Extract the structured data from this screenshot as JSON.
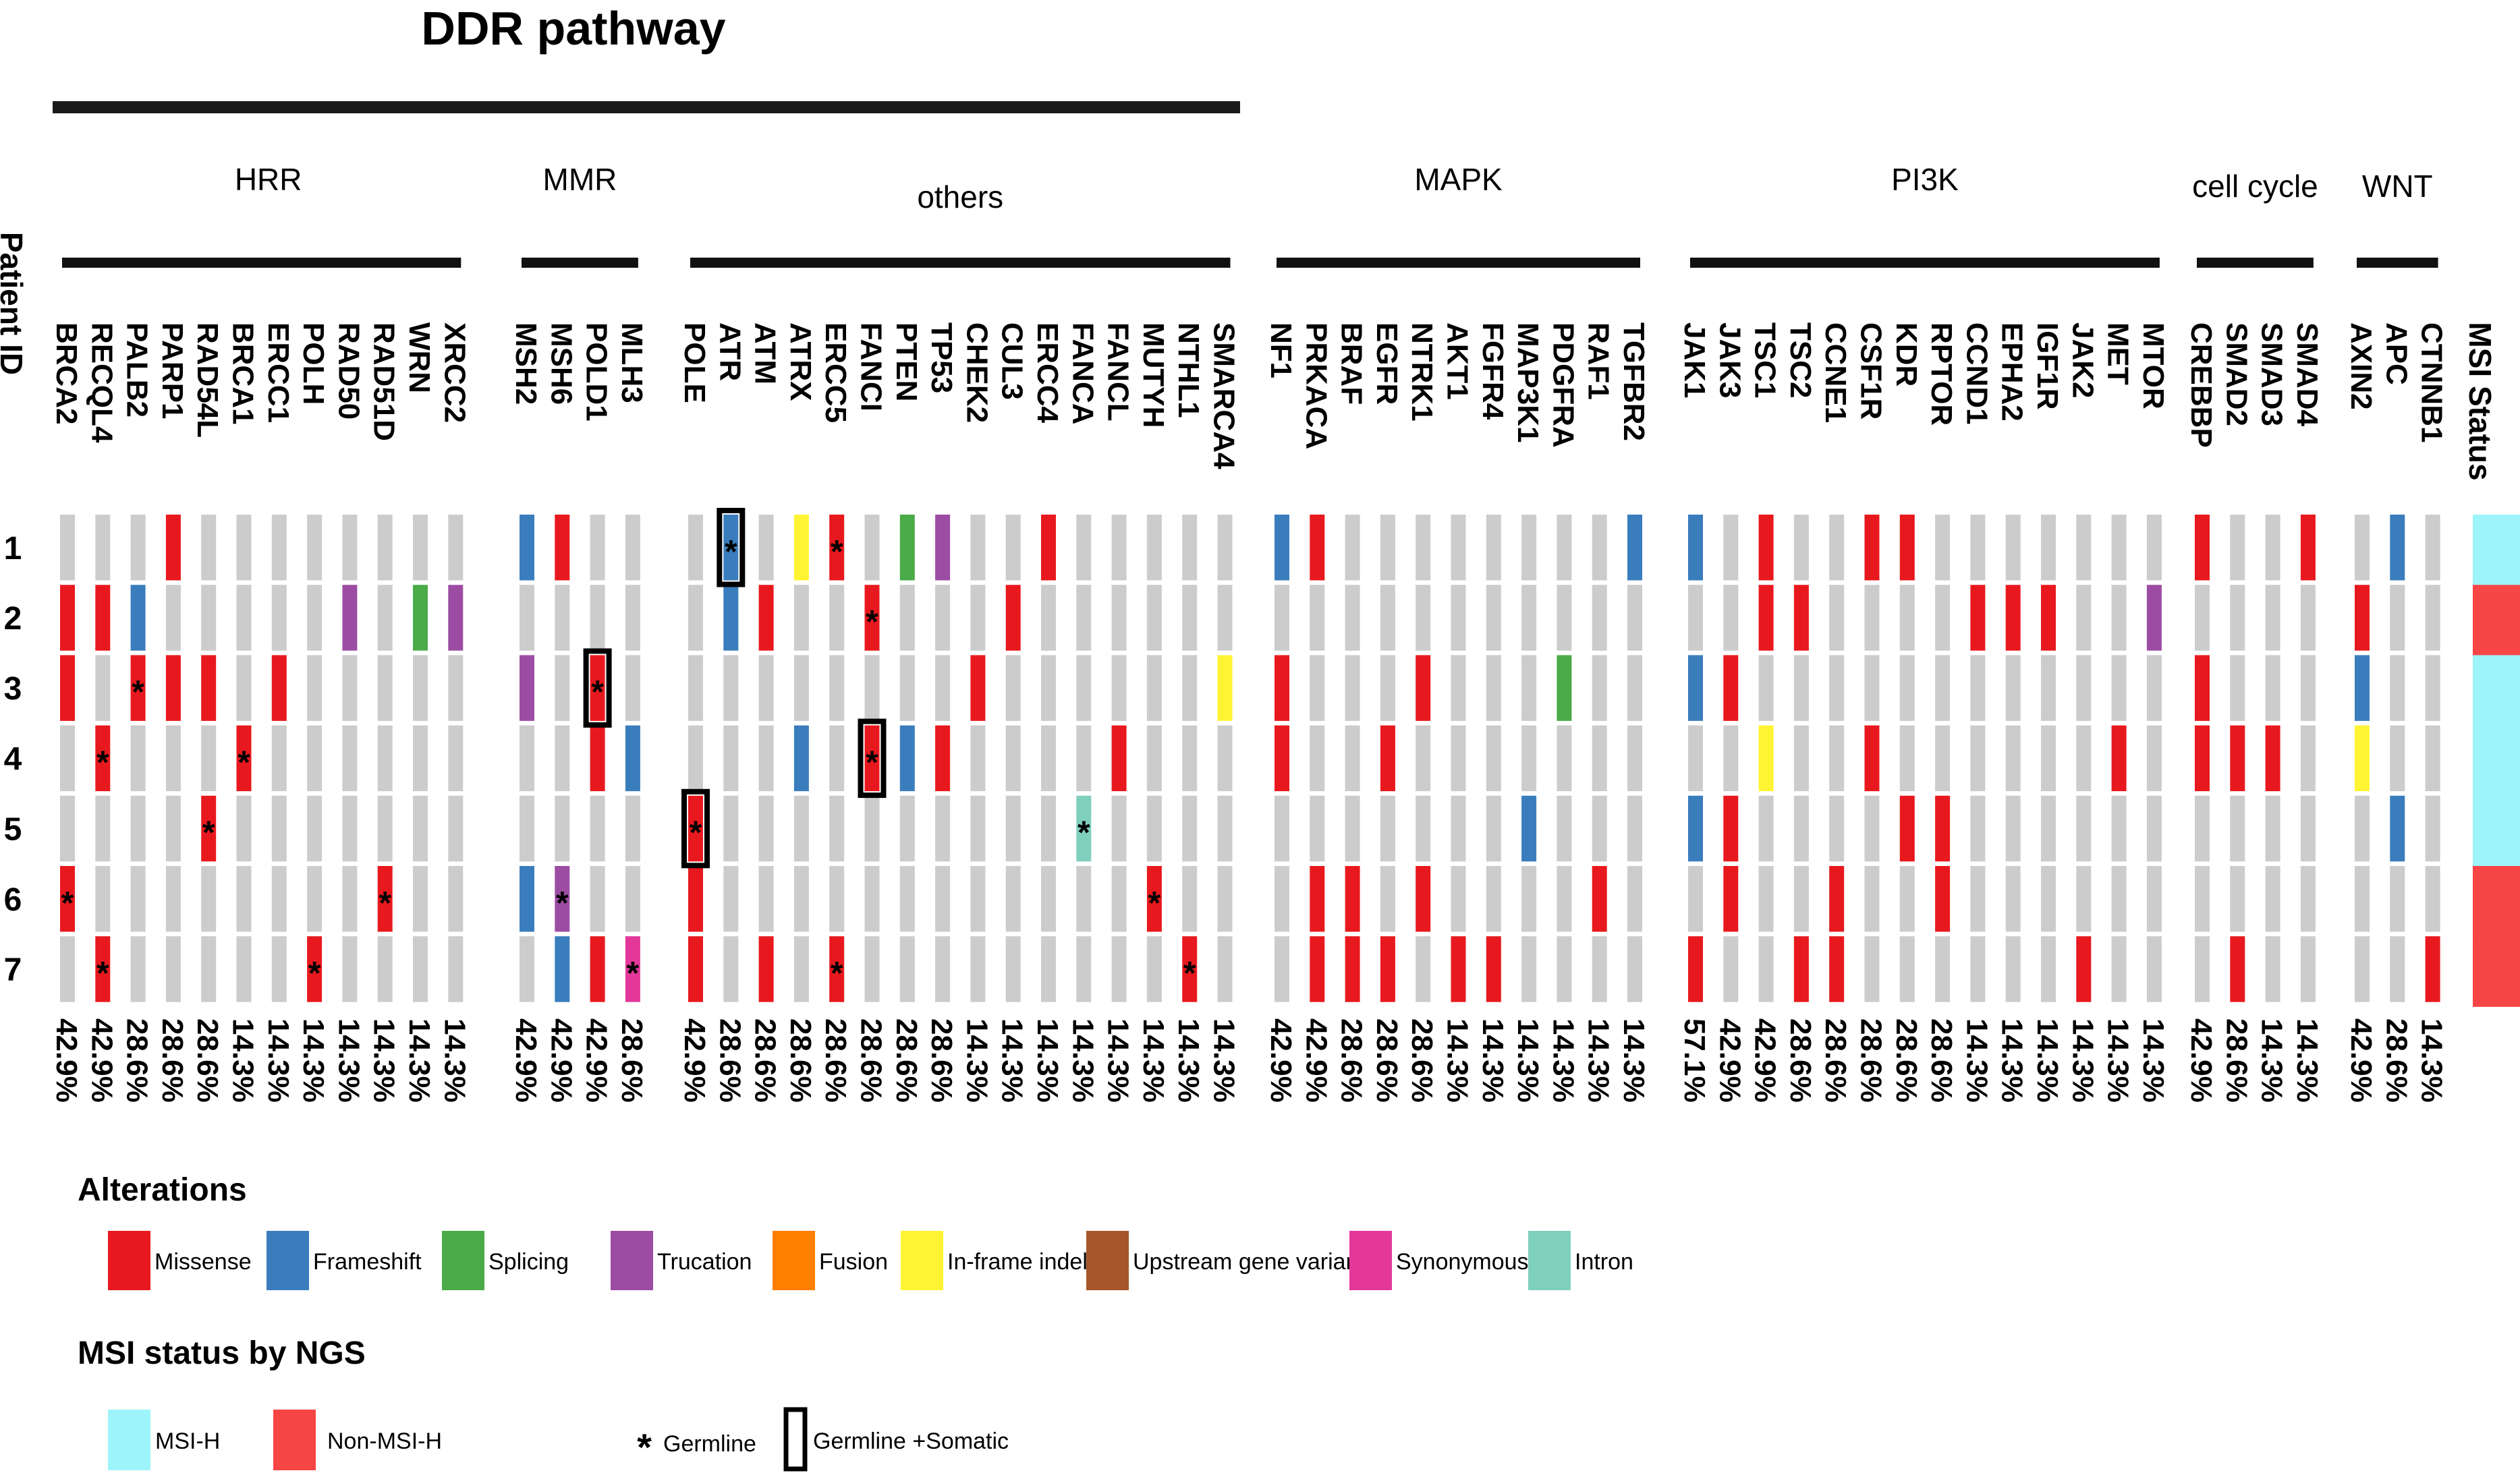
{
  "chart_data": {
    "type": "heatmap",
    "title": "DDR pathway",
    "row_header": "Patient ID",
    "status_header": "MSI Status",
    "patients": [
      "1",
      "2",
      "3",
      "4",
      "5",
      "6",
      "7"
    ],
    "ddr_groups": [
      "HRR",
      "MMR",
      "others"
    ],
    "groups": [
      {
        "name": "HRR",
        "genes": [
          "BRCA2",
          "RECQL4",
          "PALB2",
          "PARP1",
          "RAD54L",
          "BRCA1",
          "ERCC1",
          "POLH",
          "RAD50",
          "RAD51D",
          "WRN",
          "XRCC2"
        ]
      },
      {
        "name": "MMR",
        "genes": [
          "MSH2",
          "MSH6",
          "POLD1",
          "MLH3"
        ]
      },
      {
        "name": "others",
        "genes": [
          "POLE",
          "ATR",
          "ATM",
          "ATRX",
          "ERCC5",
          "FANCI",
          "PTEN",
          "TP53",
          "CHEK2",
          "CUL3",
          "ERCC4",
          "FANCA",
          "FANCL",
          "MUTYH",
          "NTHL1",
          "SMARCA4"
        ]
      },
      {
        "name": "MAPK",
        "genes": [
          "NF1",
          "PRKACA",
          "BRAF",
          "EGFR",
          "NTRK1",
          "AKT1",
          "FGFR4",
          "MAP3K1",
          "PDGFRA",
          "RAF1",
          "TGFBR2"
        ]
      },
      {
        "name": "PI3K",
        "genes": [
          "JAK1",
          "JAK3",
          "TSC1",
          "TSC2",
          "CCNE1",
          "CSF1R",
          "KDR",
          "RPTOR",
          "CCND1",
          "EPHA2",
          "IGF1R",
          "JAK2",
          "MET",
          "MTOR"
        ]
      },
      {
        "name": "cell cycle",
        "genes": [
          "CREBBP",
          "SMAD2",
          "SMAD3",
          "SMAD4"
        ]
      },
      {
        "name": "WNT",
        "genes": [
          "AXIN2",
          "APC",
          "CTNNB1"
        ]
      }
    ],
    "frequencies": [
      [
        "42.9%",
        "42.9%",
        "28.6%",
        "28.6%",
        "28.6%",
        "14.3%",
        "14.3%",
        "14.3%",
        "14.3%",
        "14.3%",
        "14.3%",
        "14.3%"
      ],
      [
        "42.9%",
        "42.9%",
        "42.9%",
        "28.6%"
      ],
      [
        "42.9%",
        "28.6%",
        "28.6%",
        "28.6%",
        "28.6%",
        "28.6%",
        "28.6%",
        "28.6%",
        "14.3%",
        "14.3%",
        "14.3%",
        "14.3%",
        "14.3%",
        "14.3%",
        "14.3%",
        "14.3%"
      ],
      [
        "42.9%",
        "42.9%",
        "28.6%",
        "28.6%",
        "28.6%",
        "14.3%",
        "14.3%",
        "14.3%",
        "14.3%",
        "14.3%",
        "14.3%"
      ],
      [
        "57.1%",
        "42.9%",
        "42.9%",
        "28.6%",
        "28.6%",
        "28.6%",
        "28.6%",
        "28.6%",
        "14.3%",
        "14.3%",
        "14.3%",
        "14.3%",
        "14.3%",
        "14.3%"
      ],
      [
        "42.9%",
        "28.6%",
        "14.3%",
        "14.3%"
      ],
      [
        "42.9%",
        "28.6%",
        "14.3%"
      ]
    ],
    "alterations": [
      {
        "gene": "PARP1",
        "patient": 1,
        "type": "M"
      },
      {
        "gene": "MSH2",
        "patient": 1,
        "type": "F"
      },
      {
        "gene": "MSH6",
        "patient": 1,
        "type": "M"
      },
      {
        "gene": "ATR",
        "patient": 1,
        "type": "F",
        "mark": "both"
      },
      {
        "gene": "ATRX",
        "patient": 1,
        "type": "I"
      },
      {
        "gene": "ERCC5",
        "patient": 1,
        "type": "M",
        "mark": "germline"
      },
      {
        "gene": "PTEN",
        "patient": 1,
        "type": "S"
      },
      {
        "gene": "TP53",
        "patient": 1,
        "type": "T"
      },
      {
        "gene": "ERCC4",
        "patient": 1,
        "type": "M"
      },
      {
        "gene": "NF1",
        "patient": 1,
        "type": "F"
      },
      {
        "gene": "PRKACA",
        "patient": 1,
        "type": "M"
      },
      {
        "gene": "TGFBR2",
        "patient": 1,
        "type": "F"
      },
      {
        "gene": "JAK1",
        "patient": 1,
        "type": "F"
      },
      {
        "gene": "TSC1",
        "patient": 1,
        "type": "M"
      },
      {
        "gene": "CSF1R",
        "patient": 1,
        "type": "M"
      },
      {
        "gene": "KDR",
        "patient": 1,
        "type": "M"
      },
      {
        "gene": "CREBBP",
        "patient": 1,
        "type": "M"
      },
      {
        "gene": "SMAD4",
        "patient": 1,
        "type": "M"
      },
      {
        "gene": "APC",
        "patient": 1,
        "type": "F"
      },
      {
        "gene": "BRCA2",
        "patient": 2,
        "type": "M"
      },
      {
        "gene": "RECQL4",
        "patient": 2,
        "type": "M"
      },
      {
        "gene": "PALB2",
        "patient": 2,
        "type": "F"
      },
      {
        "gene": "RAD50",
        "patient": 2,
        "type": "T"
      },
      {
        "gene": "WRN",
        "patient": 2,
        "type": "S"
      },
      {
        "gene": "XRCC2",
        "patient": 2,
        "type": "T"
      },
      {
        "gene": "ATR",
        "patient": 2,
        "type": "F"
      },
      {
        "gene": "ATM",
        "patient": 2,
        "type": "M"
      },
      {
        "gene": "FANCI",
        "patient": 2,
        "type": "M",
        "mark": "germline"
      },
      {
        "gene": "CUL3",
        "patient": 2,
        "type": "M"
      },
      {
        "gene": "TSC1",
        "patient": 2,
        "type": "M"
      },
      {
        "gene": "TSC2",
        "patient": 2,
        "type": "M"
      },
      {
        "gene": "CCND1",
        "patient": 2,
        "type": "M"
      },
      {
        "gene": "EPHA2",
        "patient": 2,
        "type": "M"
      },
      {
        "gene": "IGF1R",
        "patient": 2,
        "type": "M"
      },
      {
        "gene": "MTOR",
        "patient": 2,
        "type": "T"
      },
      {
        "gene": "AXIN2",
        "patient": 2,
        "type": "M"
      },
      {
        "gene": "BRCA2",
        "patient": 3,
        "type": "M"
      },
      {
        "gene": "PALB2",
        "patient": 3,
        "type": "M",
        "mark": "germline"
      },
      {
        "gene": "PARP1",
        "patient": 3,
        "type": "M"
      },
      {
        "gene": "RAD54L",
        "patient": 3,
        "type": "M"
      },
      {
        "gene": "ERCC1",
        "patient": 3,
        "type": "M"
      },
      {
        "gene": "MSH2",
        "patient": 3,
        "type": "T"
      },
      {
        "gene": "POLD1",
        "patient": 3,
        "type": "M",
        "mark": "both"
      },
      {
        "gene": "CHEK2",
        "patient": 3,
        "type": "M"
      },
      {
        "gene": "SMARCA4",
        "patient": 3,
        "type": "I"
      },
      {
        "gene": "NF1",
        "patient": 3,
        "type": "M"
      },
      {
        "gene": "NTRK1",
        "patient": 3,
        "type": "M"
      },
      {
        "gene": "PDGFRA",
        "patient": 3,
        "type": "S"
      },
      {
        "gene": "JAK1",
        "patient": 3,
        "type": "F"
      },
      {
        "gene": "JAK3",
        "patient": 3,
        "type": "M"
      },
      {
        "gene": "CREBBP",
        "patient": 3,
        "type": "M"
      },
      {
        "gene": "AXIN2",
        "patient": 3,
        "type": "F"
      },
      {
        "gene": "RECQL4",
        "patient": 4,
        "type": "M",
        "mark": "germline"
      },
      {
        "gene": "BRCA1",
        "patient": 4,
        "type": "M",
        "mark": "germline"
      },
      {
        "gene": "POLD1",
        "patient": 4,
        "type": "M"
      },
      {
        "gene": "MLH3",
        "patient": 4,
        "type": "F"
      },
      {
        "gene": "ATRX",
        "patient": 4,
        "type": "F"
      },
      {
        "gene": "FANCI",
        "patient": 4,
        "type": "M",
        "mark": "both"
      },
      {
        "gene": "PTEN",
        "patient": 4,
        "type": "F"
      },
      {
        "gene": "TP53",
        "patient": 4,
        "type": "M"
      },
      {
        "gene": "FANCL",
        "patient": 4,
        "type": "M"
      },
      {
        "gene": "NF1",
        "patient": 4,
        "type": "M"
      },
      {
        "gene": "EGFR",
        "patient": 4,
        "type": "M"
      },
      {
        "gene": "TSC1",
        "patient": 4,
        "type": "I"
      },
      {
        "gene": "CSF1R",
        "patient": 4,
        "type": "M"
      },
      {
        "gene": "MET",
        "patient": 4,
        "type": "M"
      },
      {
        "gene": "CREBBP",
        "patient": 4,
        "type": "M"
      },
      {
        "gene": "SMAD2",
        "patient": 4,
        "type": "M"
      },
      {
        "gene": "SMAD3",
        "patient": 4,
        "type": "M"
      },
      {
        "gene": "AXIN2",
        "patient": 4,
        "type": "I"
      },
      {
        "gene": "RAD54L",
        "patient": 5,
        "type": "M",
        "mark": "germline"
      },
      {
        "gene": "POLE",
        "patient": 5,
        "type": "M",
        "mark": "both"
      },
      {
        "gene": "FANCA",
        "patient": 5,
        "type": "N",
        "mark": "germline"
      },
      {
        "gene": "MAP3K1",
        "patient": 5,
        "type": "F"
      },
      {
        "gene": "JAK1",
        "patient": 5,
        "type": "F"
      },
      {
        "gene": "JAK3",
        "patient": 5,
        "type": "M"
      },
      {
        "gene": "KDR",
        "patient": 5,
        "type": "M"
      },
      {
        "gene": "RPTOR",
        "patient": 5,
        "type": "M"
      },
      {
        "gene": "APC",
        "patient": 5,
        "type": "F"
      },
      {
        "gene": "BRCA2",
        "patient": 6,
        "type": "M",
        "mark": "germline"
      },
      {
        "gene": "RAD51D",
        "patient": 6,
        "type": "M",
        "mark": "germline"
      },
      {
        "gene": "MSH2",
        "patient": 6,
        "type": "F"
      },
      {
        "gene": "MSH6",
        "patient": 6,
        "type": "T",
        "mark": "germline"
      },
      {
        "gene": "POLE",
        "patient": 6,
        "type": "M"
      },
      {
        "gene": "MUTYH",
        "patient": 6,
        "type": "M",
        "mark": "germline"
      },
      {
        "gene": "PRKACA",
        "patient": 6,
        "type": "M"
      },
      {
        "gene": "BRAF",
        "patient": 6,
        "type": "M"
      },
      {
        "gene": "NTRK1",
        "patient": 6,
        "type": "M"
      },
      {
        "gene": "RAF1",
        "patient": 6,
        "type": "M"
      },
      {
        "gene": "JAK3",
        "patient": 6,
        "type": "M"
      },
      {
        "gene": "CCNE1",
        "patient": 6,
        "type": "M"
      },
      {
        "gene": "RPTOR",
        "patient": 6,
        "type": "M"
      },
      {
        "gene": "RECQL4",
        "patient": 7,
        "type": "M",
        "mark": "germline"
      },
      {
        "gene": "POLH",
        "patient": 7,
        "type": "M",
        "mark": "germline"
      },
      {
        "gene": "MSH6",
        "patient": 7,
        "type": "F"
      },
      {
        "gene": "POLD1",
        "patient": 7,
        "type": "M"
      },
      {
        "gene": "MLH3",
        "patient": 7,
        "type": "Y",
        "mark": "germline"
      },
      {
        "gene": "POLE",
        "patient": 7,
        "type": "M"
      },
      {
        "gene": "ATM",
        "patient": 7,
        "type": "M"
      },
      {
        "gene": "ERCC5",
        "patient": 7,
        "type": "M",
        "mark": "germline"
      },
      {
        "gene": "NTHL1",
        "patient": 7,
        "type": "M",
        "mark": "germline"
      },
      {
        "gene": "PRKACA",
        "patient": 7,
        "type": "M"
      },
      {
        "gene": "BRAF",
        "patient": 7,
        "type": "M"
      },
      {
        "gene": "EGFR",
        "patient": 7,
        "type": "M"
      },
      {
        "gene": "AKT1",
        "patient": 7,
        "type": "M"
      },
      {
        "gene": "FGFR4",
        "patient": 7,
        "type": "M"
      },
      {
        "gene": "JAK1",
        "patient": 7,
        "type": "M"
      },
      {
        "gene": "TSC2",
        "patient": 7,
        "type": "M"
      },
      {
        "gene": "CCNE1",
        "patient": 7,
        "type": "M"
      },
      {
        "gene": "JAK2",
        "patient": 7,
        "type": "M"
      },
      {
        "gene": "SMAD2",
        "patient": 7,
        "type": "M"
      },
      {
        "gene": "CTNNB1",
        "patient": 7,
        "type": "M"
      }
    ],
    "msi_status": [
      "MSI-H",
      "Non-MSI-H",
      "MSI-H",
      "MSI-H",
      "MSI-H",
      "Non-MSI-H",
      "Non-MSI-H"
    ],
    "alteration_types": [
      {
        "code": "M",
        "label": "Missense",
        "color": "#e8191e"
      },
      {
        "code": "F",
        "label": "Frameshift",
        "color": "#3a7dbd"
      },
      {
        "code": "S",
        "label": "Splicing",
        "color": "#4aab48"
      },
      {
        "code": "T",
        "label": "Trucation",
        "color": "#9c4da3"
      },
      {
        "code": "U",
        "label": "Fusion",
        "color": "#ff7f00"
      },
      {
        "code": "I",
        "label": "In-frame indel",
        "color": "#fff433"
      },
      {
        "code": "G",
        "label": "Upstream gene variant",
        "color": "#a6562b"
      },
      {
        "code": "Y",
        "label": "Synonymous",
        "color": "#e3389a"
      },
      {
        "code": "N",
        "label": "Intron",
        "color": "#7fcfbd"
      }
    ],
    "legend": {
      "alterations_title": "Alterations",
      "msi_title": "MSI status by NGS",
      "msi_items": [
        {
          "label": "MSI-H",
          "color": "#9df5fb"
        },
        {
          "label": "Non-MSI-H",
          "color": "#f64545"
        }
      ],
      "germline_symbol": "*",
      "germline_label": "Germline",
      "both_label": "Germline +Somatic"
    },
    "colors": {
      "empty": "#cccccc",
      "msi_h": "#9df5fb",
      "non_msi_h": "#f64545"
    }
  }
}
